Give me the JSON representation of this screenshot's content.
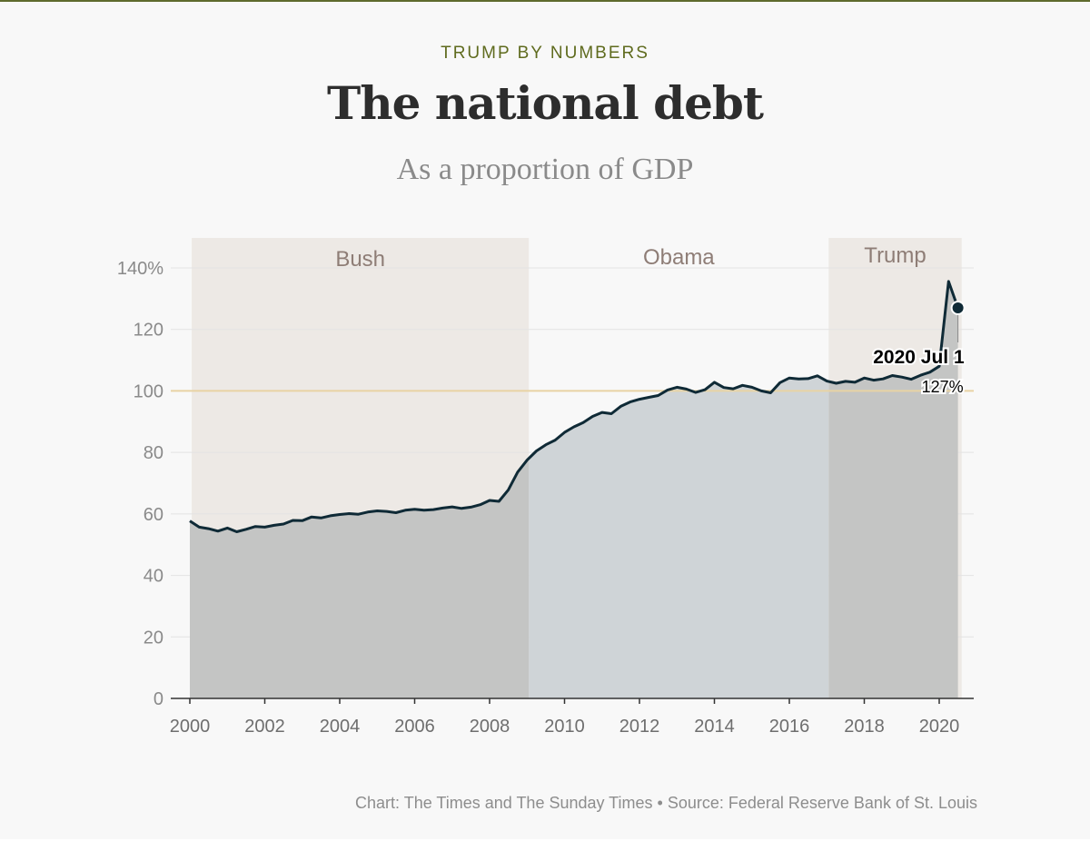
{
  "header": {
    "kicker": "TRUMP BY NUMBERS",
    "title": "The national debt",
    "subtitle": "As a proportion of GDP"
  },
  "footer": {
    "source": "Chart: The Times and The Sunday Times • Source: Federal Reserve Bank of St. Louis"
  },
  "colors": {
    "frame_accent": "#5f6b2e",
    "kicker": "#5f6b1e",
    "shade_republican": "#ede9e5",
    "shade_democrat": "#f8f8f8",
    "area_republican": "#c4c5c4",
    "area_democrat": "#cfd4d7",
    "line": "#0f2a36",
    "reference_line": "#e8d3a4",
    "era_label": "#8e7d76",
    "gridline": "#e3e3e3"
  },
  "chart_data": {
    "type": "area",
    "x_axis": {
      "min": 2000,
      "max": 2020.85,
      "ticks": [
        2000,
        2002,
        2004,
        2006,
        2008,
        2010,
        2012,
        2014,
        2016,
        2018,
        2020
      ],
      "tick_labels": [
        "2000",
        "2002",
        "2004",
        "2006",
        "2008",
        "2010",
        "2012",
        "2014",
        "2016",
        "2018",
        "2020"
      ]
    },
    "y_axis": {
      "min": 0,
      "max": 140,
      "ticks": [
        0,
        20,
        40,
        60,
        80,
        100,
        120,
        140
      ],
      "tick_labels": [
        "0",
        "20",
        "40",
        "60",
        "80",
        "100",
        "120",
        "140%"
      ]
    },
    "grid": true,
    "reference_line": 100,
    "presidencies": [
      {
        "name": "Bush",
        "start": 2000.05,
        "end": 2009.05,
        "shaded": true
      },
      {
        "name": "Obama",
        "start": 2009.05,
        "end": 2017.05,
        "shaded": false
      },
      {
        "name": "Trump",
        "start": 2017.05,
        "end": 2020.6,
        "shaded": true
      }
    ],
    "series": [
      {
        "x": [
          2000.0,
          2000.25,
          2000.5,
          2000.75,
          2001.0,
          2001.25,
          2001.5,
          2001.75,
          2002.0,
          2002.25,
          2002.5,
          2002.75,
          2003.0,
          2003.25,
          2003.5,
          2003.75,
          2004.0,
          2004.25,
          2004.5,
          2004.75,
          2005.0,
          2005.25,
          2005.5,
          2005.75,
          2006.0,
          2006.25,
          2006.5,
          2006.75,
          2007.0,
          2007.25,
          2007.5,
          2007.75,
          2008.0,
          2008.25,
          2008.5,
          2008.75,
          2009.0,
          2009.25,
          2009.5,
          2009.75,
          2010.0,
          2010.25,
          2010.5,
          2010.75,
          2011.0,
          2011.25,
          2011.5,
          2011.75,
          2012.0,
          2012.25,
          2012.5,
          2012.75,
          2013.0,
          2013.25,
          2013.5,
          2013.75,
          2014.0,
          2014.25,
          2014.5,
          2014.75,
          2015.0,
          2015.25,
          2015.5,
          2015.75,
          2016.0,
          2016.25,
          2016.5,
          2016.75,
          2017.0,
          2017.25,
          2017.5,
          2017.75,
          2018.0,
          2018.25,
          2018.5,
          2018.75,
          2019.0,
          2019.25,
          2019.5,
          2019.75,
          2020.0,
          2020.25,
          2020.5
        ],
        "values": [
          57.7,
          55.7,
          55.2,
          54.4,
          55.4,
          54.2,
          55.0,
          55.9,
          55.7,
          56.3,
          56.7,
          57.9,
          57.8,
          59.0,
          58.7,
          59.4,
          59.8,
          60.1,
          59.9,
          60.6,
          61.0,
          60.8,
          60.4,
          61.2,
          61.5,
          61.2,
          61.4,
          61.9,
          62.3,
          61.8,
          62.2,
          63.0,
          64.4,
          64.1,
          67.8,
          73.6,
          77.5,
          80.5,
          82.5,
          84.0,
          86.5,
          88.3,
          89.7,
          91.7,
          93.0,
          92.6,
          95.0,
          96.4,
          97.3,
          97.9,
          98.5,
          100.3,
          101.2,
          100.6,
          99.5,
          100.4,
          102.8,
          101.1,
          100.7,
          101.8,
          101.2,
          100.0,
          99.4,
          102.7,
          104.2,
          103.9,
          104.0,
          104.9,
          103.2,
          102.5,
          103.1,
          102.8,
          104.2,
          103.5,
          103.9,
          105.0,
          104.5,
          103.8,
          105.1,
          106.1,
          108.0,
          135.6,
          127.0
        ]
      }
    ],
    "annotation": {
      "x": 2020.5,
      "y": 127.0,
      "label": "2020 Jul 1",
      "value_label": "127%"
    }
  }
}
